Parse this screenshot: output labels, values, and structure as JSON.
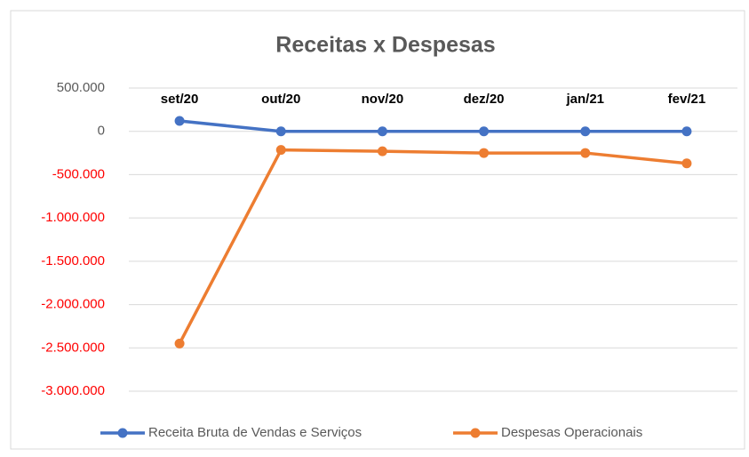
{
  "chart_data": {
    "type": "line",
    "title": "Receitas x Despesas",
    "categories": [
      "set/20",
      "out/20",
      "nov/20",
      "dez/20",
      "jan/21",
      "fev/21"
    ],
    "series": [
      {
        "name": "Receita Bruta de Vendas e Serviços",
        "color": "#4472c4",
        "values": [
          120000,
          0,
          0,
          0,
          0,
          0
        ]
      },
      {
        "name": "Despesas Operacionais",
        "color": "#ed7d31",
        "values": [
          -2450000,
          -215000,
          -230000,
          -250000,
          -250000,
          -370000
        ]
      }
    ],
    "ylim": [
      -3000000,
      500000
    ],
    "yticks": [
      {
        "value": 500000,
        "label": "500.000"
      },
      0,
      {
        "value": -500000,
        "label": "-500.000"
      },
      {
        "value": -1000000,
        "label": "-1.000.000"
      },
      {
        "value": -1500000,
        "label": "-1.500.000"
      },
      {
        "value": -2000000,
        "label": "-2.000.000"
      },
      {
        "value": -2500000,
        "label": "-2.500.000"
      },
      {
        "value": -3000000,
        "label": "-3.000.000"
      }
    ],
    "grid": true,
    "legend": "bottom",
    "tick_color": "#595959",
    "negative_tick_color": "#ff0000"
  }
}
